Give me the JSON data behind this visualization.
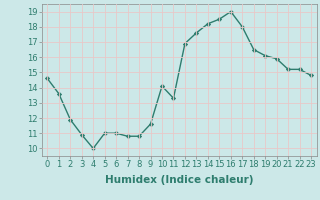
{
  "x": [
    0,
    1,
    2,
    3,
    4,
    5,
    6,
    7,
    8,
    9,
    10,
    11,
    12,
    13,
    14,
    15,
    16,
    17,
    18,
    19,
    20,
    21,
    22,
    23
  ],
  "y": [
    14.6,
    13.6,
    11.9,
    10.9,
    10.0,
    11.0,
    11.0,
    10.8,
    10.8,
    11.6,
    14.1,
    13.3,
    16.9,
    17.6,
    18.2,
    18.5,
    19.0,
    18.0,
    16.5,
    16.1,
    15.9,
    15.2,
    15.2,
    14.8
  ],
  "line_color": "#2e7d6e",
  "marker": "D",
  "marker_size": 2.2,
  "bg_color": "#cce8e8",
  "grid_color": "#e8c8c8",
  "xlabel": "Humidex (Indice chaleur)",
  "ylim": [
    9.5,
    19.5
  ],
  "xlim": [
    -0.5,
    23.5
  ],
  "yticks": [
    10,
    11,
    12,
    13,
    14,
    15,
    16,
    17,
    18,
    19
  ],
  "xticks": [
    0,
    1,
    2,
    3,
    4,
    5,
    6,
    7,
    8,
    9,
    10,
    11,
    12,
    13,
    14,
    15,
    16,
    17,
    18,
    19,
    20,
    21,
    22,
    23
  ],
  "tick_fontsize": 6.0,
  "label_fontsize": 7.5,
  "line_width": 1.0
}
